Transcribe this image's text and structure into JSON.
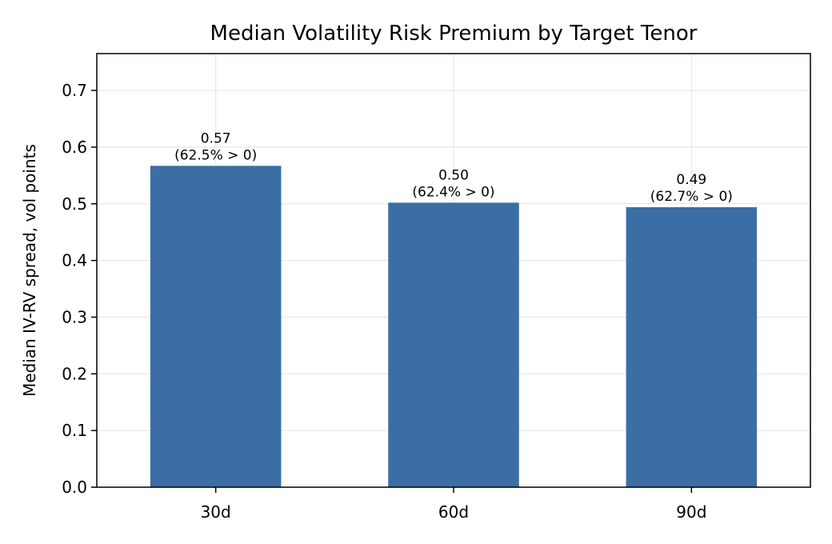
{
  "chart_data": {
    "type": "bar",
    "title": "Median Volatility Risk Premium by Target Tenor",
    "xlabel": "",
    "ylabel": "Median IV-RV spread, vol points",
    "categories": [
      "30d",
      "60d",
      "90d"
    ],
    "values": [
      0.567,
      0.502,
      0.494
    ],
    "value_labels": [
      "0.57",
      "0.50",
      "0.49"
    ],
    "share_labels": [
      "(62.5% > 0)",
      "(62.4% > 0)",
      "(62.7% > 0)"
    ],
    "ylim": [
      0,
      0.765
    ],
    "yticks": [
      0.0,
      0.1,
      0.2,
      0.3,
      0.4,
      0.5,
      0.6,
      0.7
    ],
    "ytick_labels": [
      "0.0",
      "0.1",
      "0.2",
      "0.3",
      "0.4",
      "0.5",
      "0.6",
      "0.7"
    ],
    "grid": true,
    "bar_color": "#3b6ea5"
  }
}
